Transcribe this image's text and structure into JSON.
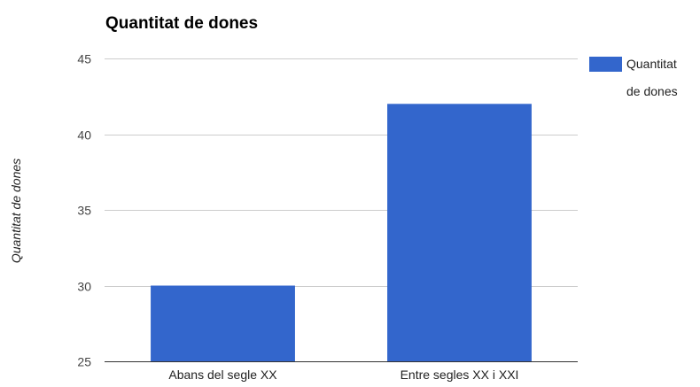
{
  "chart_data": {
    "type": "bar",
    "title": "Quantitat de dones",
    "xlabel": "",
    "ylabel": "Quantitat de dones",
    "categories": [
      "Abans del segle XX",
      "Entre segles XX i XXI"
    ],
    "series": [
      {
        "name": "Quantitat de dones",
        "legend_lines": [
          "Quantitat",
          "de dones"
        ],
        "values": [
          30,
          42
        ],
        "color": "#3366cc"
      }
    ],
    "ylim": [
      25,
      45
    ],
    "yticks": [
      45,
      40,
      35,
      30,
      25
    ],
    "grid": true,
    "legend_position": "right",
    "gridline_color": "#cccccc",
    "baseline_color": "#333333"
  }
}
